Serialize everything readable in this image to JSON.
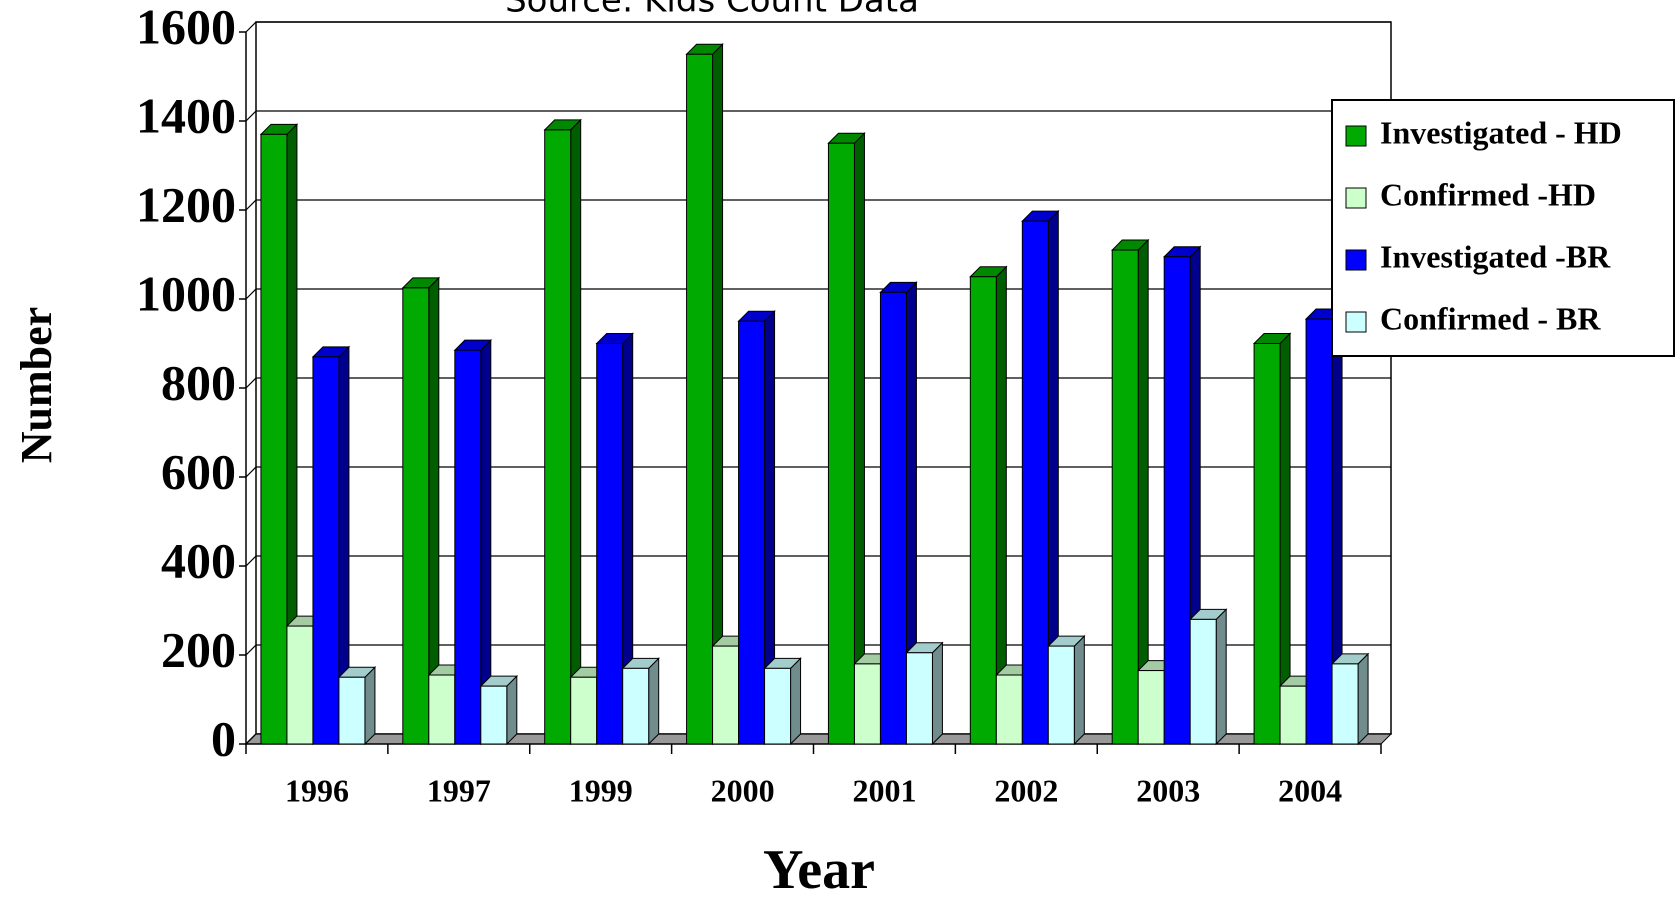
{
  "chart_data": {
    "type": "bar3d",
    "subtitle": "Source: Kids Count Data",
    "x_label": "Year",
    "y_label": "Number",
    "categories": [
      "1996",
      "1997",
      "1999",
      "2000",
      "2001",
      "2002",
      "2003",
      "2004"
    ],
    "series": [
      {
        "name": "Investigated - HD",
        "color": "#00aa00",
        "values": [
          1370,
          1025,
          1380,
          1550,
          1350,
          1050,
          1110,
          900
        ]
      },
      {
        "name": "Confirmed -HD",
        "color": "#ccffcc",
        "values": [
          265,
          155,
          150,
          220,
          180,
          155,
          165,
          130
        ]
      },
      {
        "name": "Investigated -BR",
        "color": "#0000ff",
        "values": [
          870,
          885,
          900,
          950,
          1015,
          1175,
          1095,
          955
        ]
      },
      {
        "name": "Confirmed - BR",
        "color": "#ccffff",
        "values": [
          150,
          130,
          170,
          170,
          205,
          220,
          280,
          180
        ]
      }
    ],
    "ylim": [
      0,
      1600
    ],
    "yticks": [
      0,
      200,
      400,
      600,
      800,
      1000,
      1200,
      1400,
      1600
    ],
    "grid": true,
    "legend": "right"
  }
}
